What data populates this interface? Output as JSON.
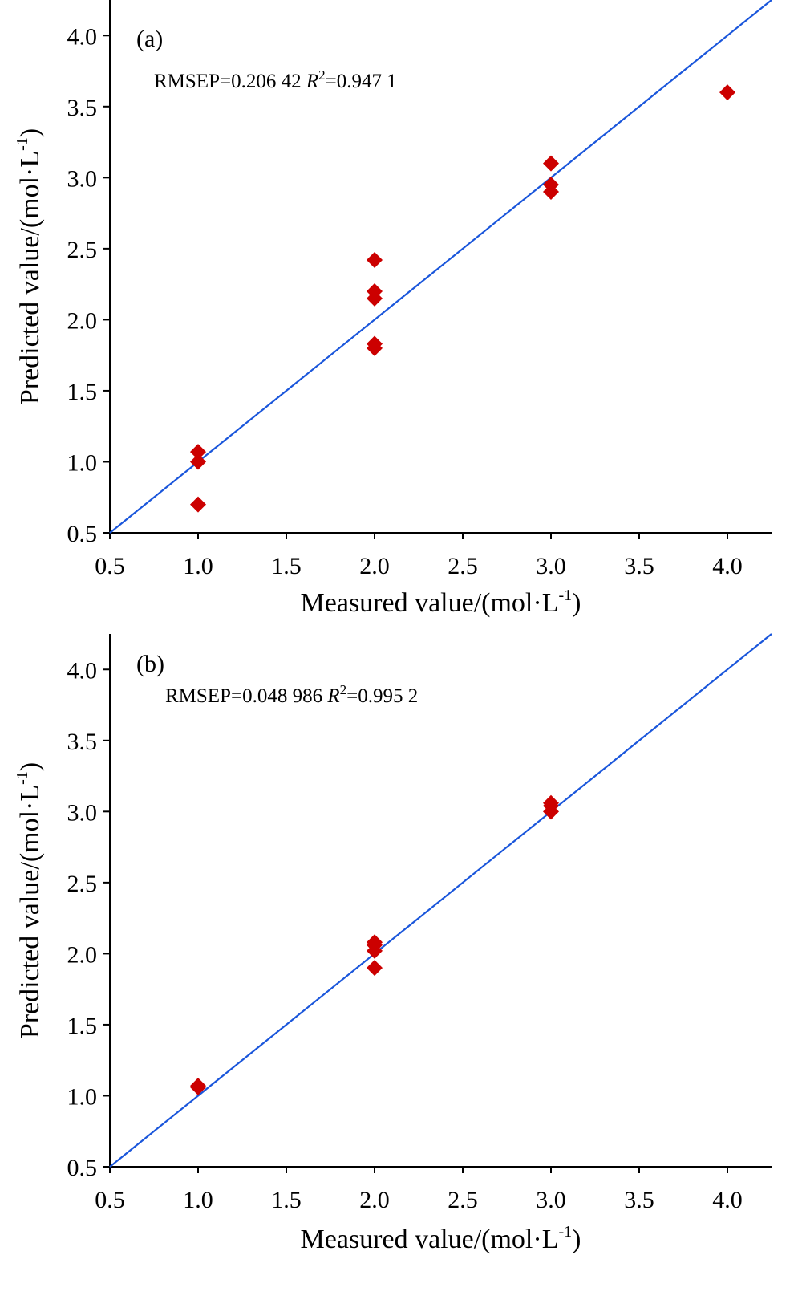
{
  "colors": {
    "marker": "#cc0000",
    "fit_line": "#1a56db",
    "axis": "#000000"
  },
  "chart_data": [
    {
      "type": "scatter",
      "panel_label": "(a)",
      "stats": {
        "rmsep_prefix": "RMSEP=0.206 42",
        "r_symbol": "R",
        "r_exp": "2",
        "r_value": "=0.947 1"
      },
      "xlabel": {
        "main": "Measured value/(mol·L",
        "sup": "-1",
        "close": ")"
      },
      "ylabel": {
        "main": "Predicted value/(mol·L",
        "sup": "-1",
        "close": ")"
      },
      "xlim": [
        0.5,
        4.25
      ],
      "ylim": [
        0.5,
        4.25
      ],
      "ticks": [
        "0.5",
        "1.0",
        "1.5",
        "2.0",
        "2.5",
        "3.0",
        "3.5",
        "4.0"
      ],
      "grid": false,
      "fit_line": {
        "slope": 1,
        "intercept": 0
      },
      "points": [
        {
          "x": 1.0,
          "y": 1.07
        },
        {
          "x": 1.0,
          "y": 1.0
        },
        {
          "x": 1.0,
          "y": 0.7
        },
        {
          "x": 2.0,
          "y": 2.42
        },
        {
          "x": 2.0,
          "y": 2.2
        },
        {
          "x": 2.0,
          "y": 2.15
        },
        {
          "x": 2.0,
          "y": 1.83
        },
        {
          "x": 2.0,
          "y": 1.8
        },
        {
          "x": 3.0,
          "y": 3.1
        },
        {
          "x": 3.0,
          "y": 2.95
        },
        {
          "x": 3.0,
          "y": 2.9
        },
        {
          "x": 4.0,
          "y": 3.6
        }
      ]
    },
    {
      "type": "scatter",
      "panel_label": "(b)",
      "stats": {
        "rmsep_prefix": "RMSEP=0.048 986",
        "r_symbol": "R",
        "r_exp": "2",
        "r_value": "=0.995 2"
      },
      "xlabel": {
        "main": "Measured value/(mol·L",
        "sup": "-1",
        "close": ")"
      },
      "ylabel": {
        "main": "Predicted value/(mol·L",
        "sup": "-1",
        "close": ")"
      },
      "xlim": [
        0.5,
        4.25
      ],
      "ylim": [
        0.5,
        4.25
      ],
      "ticks": [
        "0.5",
        "1.0",
        "1.5",
        "2.0",
        "2.5",
        "3.0",
        "3.5",
        "4.0"
      ],
      "grid": false,
      "fit_line": {
        "slope": 1,
        "intercept": 0
      },
      "points": [
        {
          "x": 1.0,
          "y": 1.07
        },
        {
          "x": 1.0,
          "y": 1.06
        },
        {
          "x": 2.0,
          "y": 2.08
        },
        {
          "x": 2.0,
          "y": 2.06
        },
        {
          "x": 2.0,
          "y": 2.02
        },
        {
          "x": 2.0,
          "y": 1.9
        },
        {
          "x": 3.0,
          "y": 3.06
        },
        {
          "x": 3.0,
          "y": 3.04
        },
        {
          "x": 3.0,
          "y": 3.0
        }
      ]
    }
  ]
}
